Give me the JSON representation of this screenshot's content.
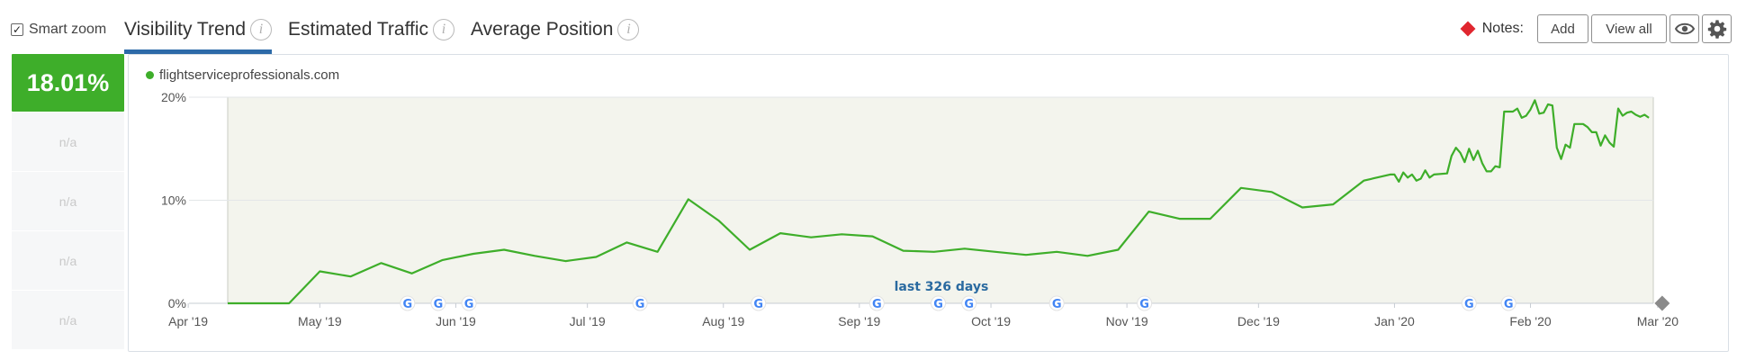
{
  "toolbar": {
    "smart_zoom_label": "Smart zoom",
    "smart_zoom_checked": true,
    "tabs": [
      {
        "label": "Visibility Trend",
        "active": true
      },
      {
        "label": "Estimated Traffic",
        "active": false
      },
      {
        "label": "Average Position",
        "active": false
      }
    ],
    "notes_label": "Notes:",
    "add_label": "Add",
    "view_all_label": "View all",
    "info_glyph": "i",
    "eye_icon": "eye-icon",
    "gear_icon": "gear-icon",
    "note_marker_color": "#e0262f"
  },
  "summary": {
    "value": "18.01%",
    "rows": [
      "n/a",
      "n/a",
      "n/a",
      "n/a"
    ],
    "accent_color": "#3eae2a"
  },
  "chart": {
    "domain": "flightserviceprofessionals.com",
    "period_label": "last 326 days",
    "google_glyph": "G"
  },
  "chart_data": {
    "type": "line",
    "series": [
      {
        "name": "flightserviceprofessionals.com",
        "color": "#3eae2a"
      }
    ],
    "x_start": "2019-04-10",
    "x_end": "2020-02-29",
    "ylim": [
      0,
      20
    ],
    "y_ticks": [
      "0%",
      "10%",
      "20%"
    ],
    "x_ticks": [
      {
        "label": "Apr '19",
        "date": "2019-04-01"
      },
      {
        "label": "May '19",
        "date": "2019-05-01"
      },
      {
        "label": "Jun '19",
        "date": "2019-06-01"
      },
      {
        "label": "Jul '19",
        "date": "2019-07-01"
      },
      {
        "label": "Aug '19",
        "date": "2019-08-01"
      },
      {
        "label": "Sep '19",
        "date": "2019-09-01"
      },
      {
        "label": "Oct '19",
        "date": "2019-10-01"
      },
      {
        "label": "Nov '19",
        "date": "2019-11-01"
      },
      {
        "label": "Dec '19",
        "date": "2019-12-01"
      },
      {
        "label": "Jan '20",
        "date": "2020-01-01"
      },
      {
        "label": "Feb '20",
        "date": "2020-02-01"
      },
      {
        "label": "Mar '20",
        "date": "2020-03-01"
      }
    ],
    "points": [
      [
        "2019-04-10",
        0
      ],
      [
        "2019-04-24",
        0
      ],
      [
        "2019-05-01",
        3.1
      ],
      [
        "2019-05-08",
        2.6
      ],
      [
        "2019-05-15",
        3.9
      ],
      [
        "2019-05-22",
        2.9
      ],
      [
        "2019-05-29",
        4.2
      ],
      [
        "2019-06-05",
        4.8
      ],
      [
        "2019-06-12",
        5.2
      ],
      [
        "2019-06-19",
        4.6
      ],
      [
        "2019-06-26",
        4.1
      ],
      [
        "2019-07-03",
        4.5
      ],
      [
        "2019-07-10",
        5.9
      ],
      [
        "2019-07-17",
        5.0
      ],
      [
        "2019-07-24",
        10.1
      ],
      [
        "2019-07-31",
        8.0
      ],
      [
        "2019-08-07",
        5.2
      ],
      [
        "2019-08-14",
        6.8
      ],
      [
        "2019-08-21",
        6.4
      ],
      [
        "2019-08-28",
        6.7
      ],
      [
        "2019-09-04",
        6.5
      ],
      [
        "2019-09-11",
        5.1
      ],
      [
        "2019-09-18",
        5.0
      ],
      [
        "2019-09-25",
        5.3
      ],
      [
        "2019-10-02",
        5.0
      ],
      [
        "2019-10-09",
        4.7
      ],
      [
        "2019-10-16",
        5.0
      ],
      [
        "2019-10-23",
        4.6
      ],
      [
        "2019-10-30",
        5.2
      ],
      [
        "2019-11-06",
        8.9
      ],
      [
        "2019-11-13",
        8.2
      ],
      [
        "2019-11-20",
        8.2
      ],
      [
        "2019-11-27",
        11.2
      ],
      [
        "2019-12-04",
        10.8
      ],
      [
        "2019-12-11",
        9.3
      ],
      [
        "2019-12-18",
        9.6
      ],
      [
        "2019-12-25",
        11.9
      ],
      [
        "2019-12-31",
        12.5
      ],
      [
        "2020-01-01",
        12.5
      ],
      [
        "2020-01-02",
        11.8
      ],
      [
        "2020-01-03",
        12.7
      ],
      [
        "2020-01-04",
        12.2
      ],
      [
        "2020-01-05",
        12.5
      ],
      [
        "2020-01-06",
        11.9
      ],
      [
        "2020-01-07",
        12.1
      ],
      [
        "2020-01-08",
        12.9
      ],
      [
        "2020-01-09",
        12.2
      ],
      [
        "2020-01-10",
        12.5
      ],
      [
        "2020-01-13",
        12.6
      ],
      [
        "2020-01-14",
        14.3
      ],
      [
        "2020-01-15",
        15.1
      ],
      [
        "2020-01-16",
        14.6
      ],
      [
        "2020-01-17",
        13.7
      ],
      [
        "2020-01-18",
        15.0
      ],
      [
        "2020-01-19",
        13.9
      ],
      [
        "2020-01-20",
        14.8
      ],
      [
        "2020-01-21",
        13.6
      ],
      [
        "2020-01-22",
        12.8
      ],
      [
        "2020-01-23",
        12.8
      ],
      [
        "2020-01-24",
        13.3
      ],
      [
        "2020-01-25",
        13.2
      ],
      [
        "2020-01-26",
        18.6
      ],
      [
        "2020-01-27",
        18.6
      ],
      [
        "2020-01-28",
        18.6
      ],
      [
        "2020-01-29",
        18.9
      ],
      [
        "2020-01-30",
        18.0
      ],
      [
        "2020-01-31",
        18.2
      ],
      [
        "2020-02-01",
        18.8
      ],
      [
        "2020-02-02",
        19.7
      ],
      [
        "2020-02-03",
        18.4
      ],
      [
        "2020-02-04",
        18.5
      ],
      [
        "2020-02-05",
        19.3
      ],
      [
        "2020-02-06",
        19.2
      ],
      [
        "2020-02-07",
        15.1
      ],
      [
        "2020-02-08",
        14.0
      ],
      [
        "2020-02-09",
        15.4
      ],
      [
        "2020-02-10",
        15.1
      ],
      [
        "2020-02-11",
        17.4
      ],
      [
        "2020-02-12",
        17.4
      ],
      [
        "2020-02-13",
        17.4
      ],
      [
        "2020-02-14",
        17.1
      ],
      [
        "2020-02-15",
        16.6
      ],
      [
        "2020-02-16",
        16.6
      ],
      [
        "2020-02-17",
        15.3
      ],
      [
        "2020-02-18",
        16.3
      ],
      [
        "2020-02-19",
        15.6
      ],
      [
        "2020-02-20",
        15.2
      ],
      [
        "2020-02-21",
        18.9
      ],
      [
        "2020-02-22",
        18.2
      ],
      [
        "2020-02-23",
        18.5
      ],
      [
        "2020-02-24",
        18.6
      ],
      [
        "2020-02-25",
        18.3
      ],
      [
        "2020-02-26",
        18.1
      ],
      [
        "2020-02-27",
        18.3
      ],
      [
        "2020-02-28",
        18.0
      ]
    ],
    "google_updates": [
      "2019-05-21",
      "2019-05-28",
      "2019-06-04",
      "2019-07-13",
      "2019-08-09",
      "2019-09-05",
      "2019-09-19",
      "2019-09-26",
      "2019-10-16",
      "2019-11-05",
      "2020-01-18",
      "2020-01-27"
    ],
    "end_marker": "2020-03-01",
    "grid": true
  }
}
